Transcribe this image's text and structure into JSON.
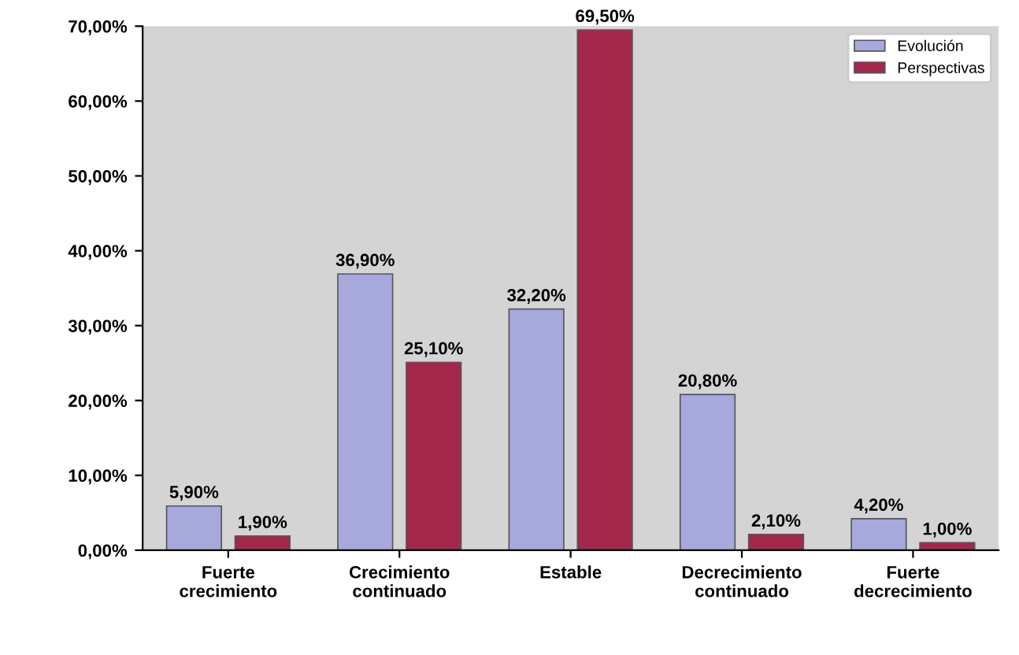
{
  "chart_data": {
    "type": "bar",
    "categories": [
      "Fuerte\ncrecimiento",
      "Crecimiento\ncontinuado",
      "Estable",
      "Decrecimiento\ncontinuado",
      "Fuerte\ndecrecimiento"
    ],
    "series": [
      {
        "name": "Evolución",
        "color": "#a7a9dc",
        "values": [
          5.9,
          36.9,
          32.2,
          20.8,
          4.2
        ],
        "value_labels": [
          "5,90%",
          "36,90%",
          "32,20%",
          "20,80%",
          "4,20%"
        ]
      },
      {
        "name": "Perspectivas",
        "color": "#a3284c",
        "values": [
          1.9,
          25.1,
          69.5,
          2.1,
          1.0
        ],
        "value_labels": [
          "1,90%",
          "25,10%",
          "69,50%",
          "2,10%",
          "1,00%"
        ]
      }
    ],
    "ylim": [
      0,
      70
    ],
    "yticks": [
      {
        "value": 0,
        "label": "0,00%"
      },
      {
        "value": 10,
        "label": "10,00%"
      },
      {
        "value": 20,
        "label": "20,00%"
      },
      {
        "value": 30,
        "label": "30,00%"
      },
      {
        "value": 40,
        "label": "40,00%"
      },
      {
        "value": 50,
        "label": "50,00%"
      },
      {
        "value": 60,
        "label": "60,00%"
      },
      {
        "value": 70,
        "label": "70,00%"
      }
    ],
    "grid": false,
    "legend": "top right"
  }
}
